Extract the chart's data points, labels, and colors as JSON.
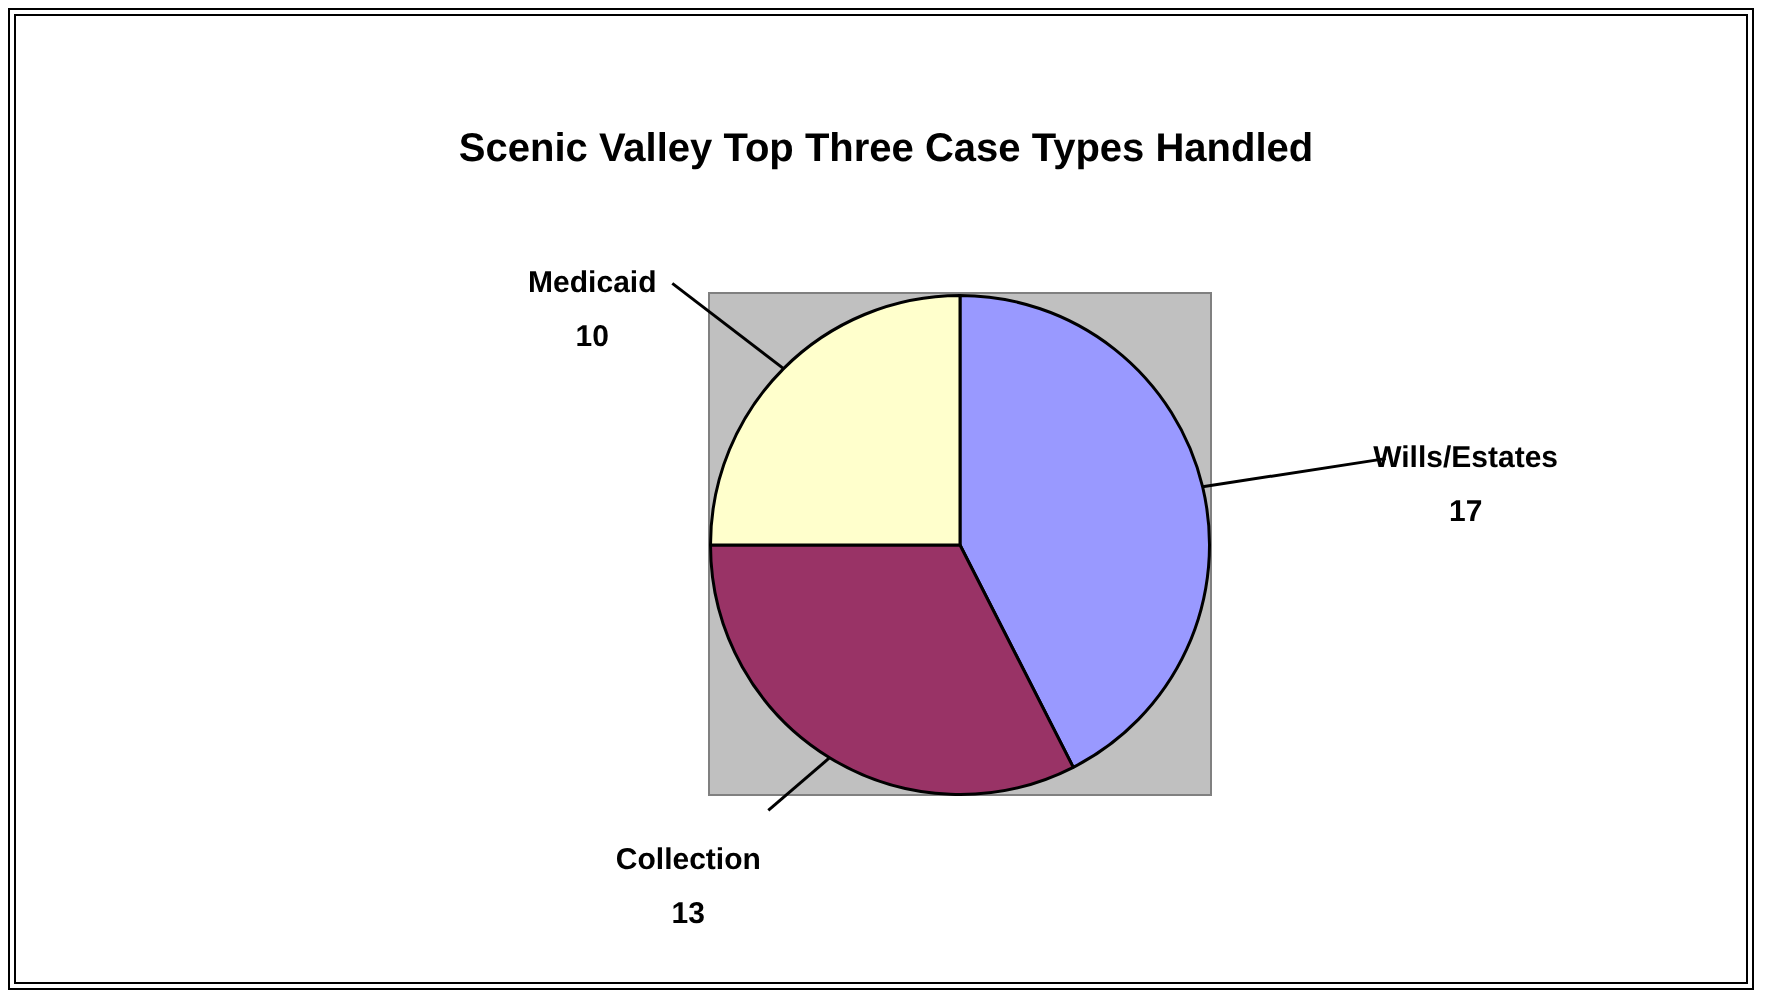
{
  "chart_data": {
    "type": "pie",
    "title": "Scenic Valley Top Three Case Types Handled",
    "categories": [
      "Wills/Estates",
      "Collection",
      "Medicaid"
    ],
    "values": [
      17,
      13,
      10
    ],
    "colors": [
      "#9999ff",
      "#993366",
      "#ffffcc"
    ],
    "data_labels": true,
    "legend": false
  }
}
